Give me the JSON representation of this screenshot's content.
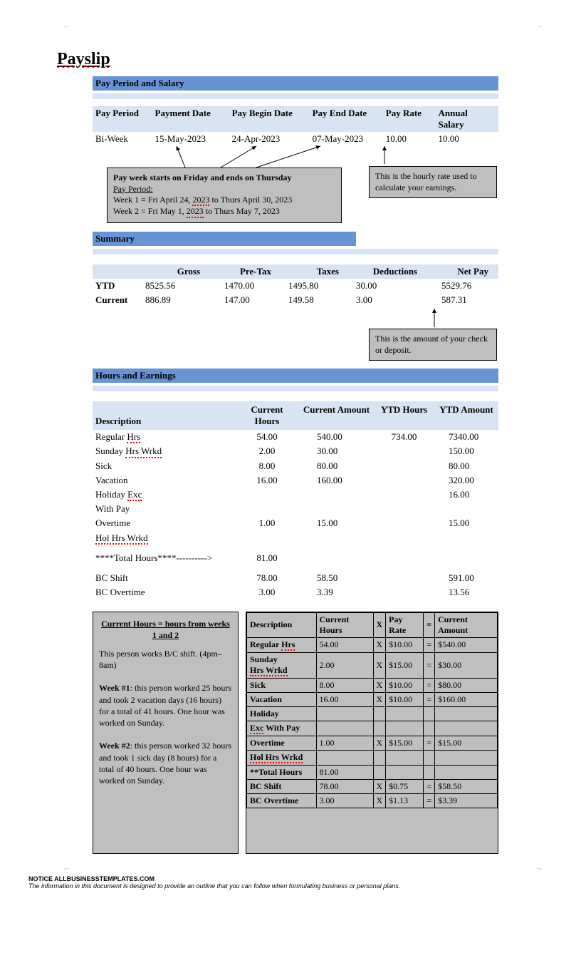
{
  "title": "Payslip",
  "sections": {
    "pay_period": "Pay Period and Salary",
    "summary": "Summary",
    "hours": "Hours and Earnings"
  },
  "pay_period_header": {
    "pay_period": "Pay Period",
    "payment_date": "Payment Date",
    "pay_begin": "Pay Begin Date",
    "pay_end": "Pay End Date",
    "pay_rate": "Pay Rate",
    "annual": "Annual Salary"
  },
  "pay_period_row": {
    "pay_period": "Bi-Week",
    "payment_date": "15-May-2023",
    "pay_begin": "24-Apr-2023",
    "pay_end": "07-May-2023",
    "pay_rate": "10.00",
    "annual": "10.00"
  },
  "info_box_1": {
    "line1_bold": "Pay week starts on Friday and ends on Thursday",
    "line2_u": "Pay Period:",
    "line3a": "Week 1 = Fri April 24, ",
    "line3_year": "2023",
    "line3b": " to Thurs April 30, 2023",
    "line4a": "Week 2 = Fri May 1, ",
    "line4_year": "2023",
    "line4b": " to Thurs May 7, 2023"
  },
  "info_box_2": "This is the hourly rate used to calculate your earnings.",
  "info_box_3": "This is the amount of your check or deposit.",
  "summary_header": {
    "gross": "Gross",
    "pretax": "Pre-Tax",
    "taxes": "Taxes",
    "deductions": "Deductions",
    "netpay": "Net Pay"
  },
  "summary_rows": {
    "ytd": {
      "label": "YTD",
      "gross": "8525.56",
      "pretax": "1470.00",
      "taxes": "1495.80",
      "deductions": "30.00",
      "netpay": "5529.76"
    },
    "current": {
      "label": "Current",
      "gross": "886.89",
      "pretax": "147.00",
      "taxes": "149.58",
      "deductions": "3.00",
      "netpay": "587.31"
    }
  },
  "hours_header": {
    "desc": "Description",
    "curr_hours": "Current Hours",
    "curr_amount": "Current Amount",
    "ytd_hours": "YTD Hours",
    "ytd_amount": "YTD Amount"
  },
  "hours_rows": {
    "regular": {
      "desc_a": "Regular ",
      "desc_b": "Hrs",
      "ch": "54.00",
      "ca": "540.00",
      "yh": "734.00",
      "ya": "7340.00"
    },
    "sunday": {
      "desc_a": "Sunday ",
      "desc_b": "Hrs Wrkd",
      "ch": "2.00",
      "ca": "30.00",
      "yh": "",
      "ya": "150.00"
    },
    "sick": {
      "desc": "Sick",
      "ch": "8.00",
      "ca": "80.00",
      "yh": "",
      "ya": "80.00"
    },
    "vacation": {
      "desc": "Vacation",
      "ch": "16.00",
      "ca": "160.00",
      "yh": "",
      "ya": "320.00"
    },
    "holiday": {
      "desc_a": "Holiday ",
      "desc_b": "Exc",
      "ch": "",
      "ca": "",
      "yh": "",
      "ya": "16.00"
    },
    "withpay": {
      "desc": "With Pay",
      "ch": "",
      "ca": "",
      "yh": "",
      "ya": ""
    },
    "overtime": {
      "desc": "Overtime",
      "ch": "1.00",
      "ca": "15.00",
      "yh": "",
      "ya": "15.00"
    },
    "holhrs": {
      "desc_a": "",
      "desc_b": "Hol Hrs Wrkd",
      "ch": "",
      "ca": "",
      "yh": "",
      "ya": ""
    },
    "total": {
      "desc": "****Total Hours****---------->",
      "ch": "81.00",
      "ca": "",
      "yh": "",
      "ya": ""
    },
    "bcshift": {
      "desc": "BC Shift",
      "ch": "78.00",
      "ca": "58.50",
      "yh": "",
      "ya": "591.00"
    },
    "bcovertime": {
      "desc": "BC Overtime",
      "ch": "3.00",
      "ca": "3.39",
      "yh": "",
      "ya": "13.56"
    }
  },
  "explain_box": {
    "header": "Current Hours = hours from weeks 1 and 2",
    "p1": "This person works B/C shift. (4pm– 8am)",
    "p2a": "Week #1",
    "p2b": ": this person worked 25 hours and took 2 vacation days (16 hours) for a total of 41 hours.  One hour was worked on Sunday.",
    "p3a": "Week #2",
    "p3b": ": this person worked 32 hours and took 1 sick day (8 hours) for a total of 40 hours.  One hour was worked on Sunday."
  },
  "calc_table": {
    "headers": {
      "desc": "Description",
      "ch": "Current Hours",
      "x": "X",
      "rate": "Pay Rate",
      "eq": "=",
      "ca": "Current Amount"
    },
    "rows": [
      {
        "desc_a": "Regular ",
        "desc_b": "Hrs",
        "ch": "54.00",
        "x": "X",
        "rate": "$10.00",
        "eq": "=",
        "ca": "$540.00"
      },
      {
        "desc_a": "Sunday ",
        "desc_b": "Hrs Wrkd",
        "ch": "2.00",
        "x": "X",
        "rate": "$15.00",
        "eq": "=",
        "ca": "$30.00"
      },
      {
        "desc": "Sick",
        "ch": "8.00",
        "x": "X",
        "rate": "$10.00",
        "eq": "=",
        "ca": "$80.00"
      },
      {
        "desc": "Vacation",
        "ch": "16.00",
        "x": "X",
        "rate": "$10.00",
        "eq": "=",
        "ca": "$160.00"
      },
      {
        "desc": "Holiday",
        "ch": "",
        "x": "",
        "rate": "",
        "eq": "",
        "ca": ""
      },
      {
        "desc_a": "",
        "desc_b": "Exc",
        "desc_c": " With Pay",
        "ch": "",
        "x": "",
        "rate": "",
        "eq": "",
        "ca": ""
      },
      {
        "desc": "Overtime",
        "ch": "1.00",
        "x": "X",
        "rate": "$15.00",
        "eq": "=",
        "ca": "$15.00"
      },
      {
        "desc_a": "",
        "desc_b": "Hol Hrs Wrkd",
        "ch": "",
        "x": "",
        "rate": "",
        "eq": "",
        "ca": ""
      },
      {
        "desc": "**Total Hours",
        "ch": "81.00",
        "x": "",
        "rate": "",
        "eq": "",
        "ca": ""
      },
      {
        "desc": "BC Shift",
        "ch": "78.00",
        "x": "X",
        "rate": "$0.75",
        "eq": "=",
        "ca": "$58.50"
      },
      {
        "desc": "BC Overtime",
        "ch": "3.00",
        "x": "X",
        "rate": "$1.13",
        "eq": "=",
        "ca": "$3.39"
      }
    ]
  },
  "footer": {
    "notice": "NOTICE  ALLBUSINESSTEMPLATES.COM",
    "text": "The information in this document is designed to provide  an outline that you can follow when formulating business or personal plans."
  },
  "colors": {
    "section_bar": "#6694d4",
    "sub_bar": "#d8e4f3",
    "info_box_bg": "#bfbfbf",
    "text": "#000000"
  }
}
